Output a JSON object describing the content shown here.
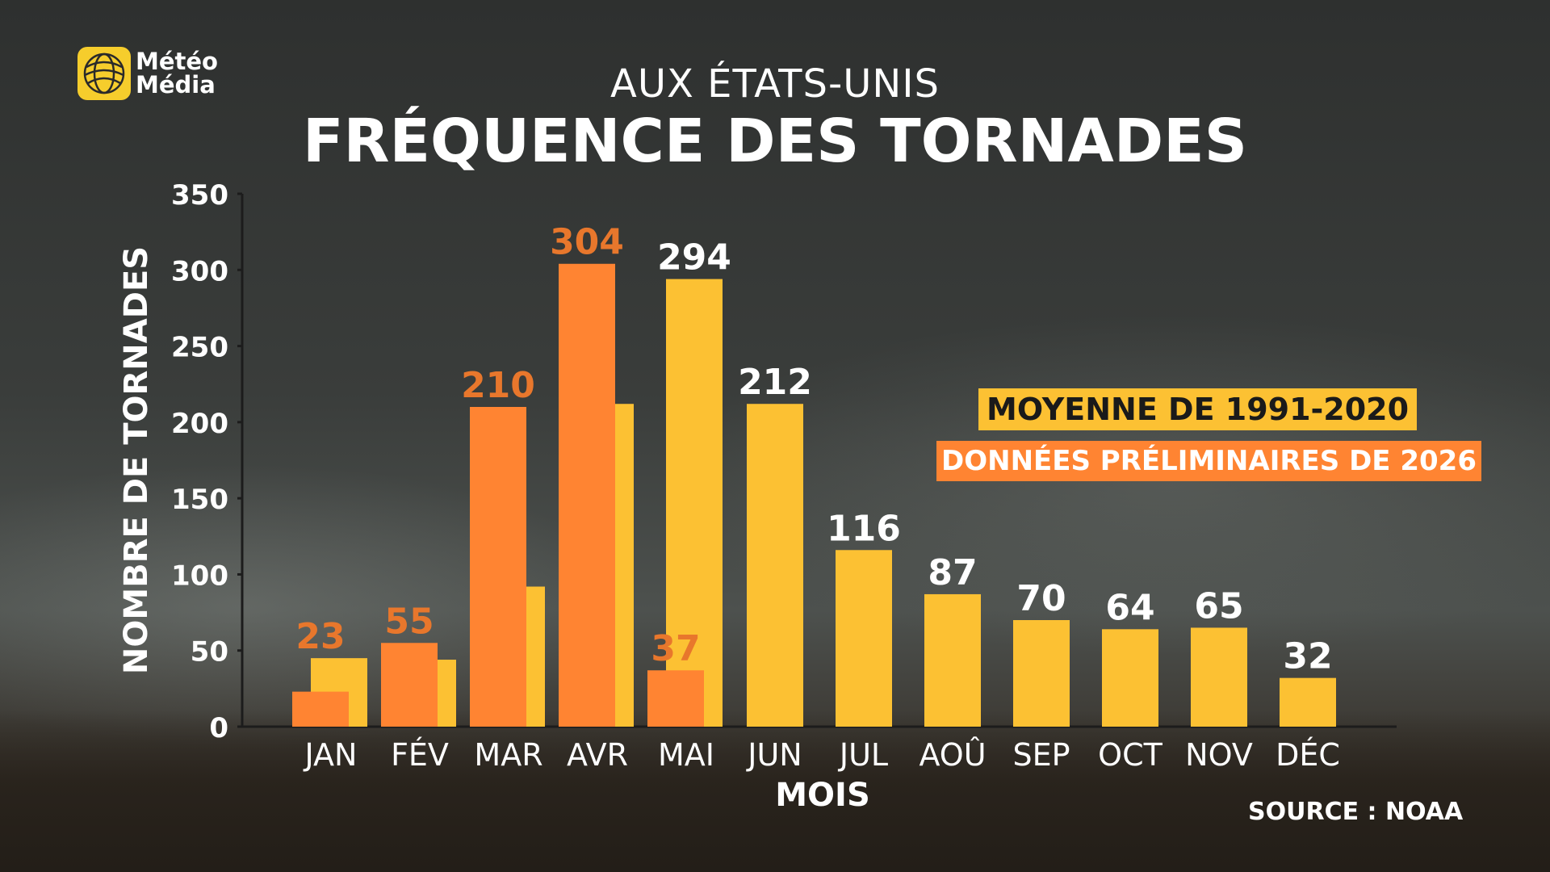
{
  "brand": {
    "line1": "Météo",
    "line2": "Média",
    "logo_icon": "globe-icon"
  },
  "header": {
    "subtitle": "AUX ÉTATS-UNIS",
    "title": "FRÉQUENCE DES TORNADES"
  },
  "legend": {
    "historical": "MOYENNE DE 1991-2020",
    "preliminary": "DONNÉES PRÉLIMINAIRES DE 2026"
  },
  "footer": {
    "source": "SOURCE : NOAA"
  },
  "colors": {
    "historical": "#fcc133",
    "preliminary": "#ff8432",
    "preliminary_label": "#e8772c",
    "axis": "#1c1c1c",
    "text": "#ffffff"
  },
  "chart_data": {
    "type": "bar",
    "title": "FRÉQUENCE DES TORNADES",
    "subtitle": "AUX ÉTATS-UNIS",
    "xlabel": "MOIS",
    "ylabel": "NOMBRE DE TORNADES",
    "ylim": [
      0,
      350
    ],
    "yticks": [
      0,
      50,
      100,
      150,
      200,
      250,
      300,
      350
    ],
    "categories": [
      "JAN",
      "FÉV",
      "MAR",
      "AVR",
      "MAI",
      "JUN",
      "JUL",
      "AOÛ",
      "SEP",
      "OCT",
      "NOV",
      "DÉC"
    ],
    "series": [
      {
        "name": "MOYENNE DE 1991-2020",
        "values": [
          45,
          44,
          92,
          212,
          294,
          212,
          116,
          87,
          70,
          64,
          65,
          32
        ],
        "labels": [
          null,
          null,
          null,
          null,
          "294",
          "212",
          "116",
          "87",
          "70",
          "64",
          "65",
          "32"
        ]
      },
      {
        "name": "DONNÉES PRÉLIMINAIRES DE 2026",
        "values": [
          23,
          55,
          210,
          304,
          37,
          null,
          null,
          null,
          null,
          null,
          null,
          null
        ],
        "labels": [
          "23",
          "55",
          "210",
          "304",
          "37",
          null,
          null,
          null,
          null,
          null,
          null,
          null
        ]
      }
    ],
    "grid": false,
    "legend_position": "right"
  }
}
